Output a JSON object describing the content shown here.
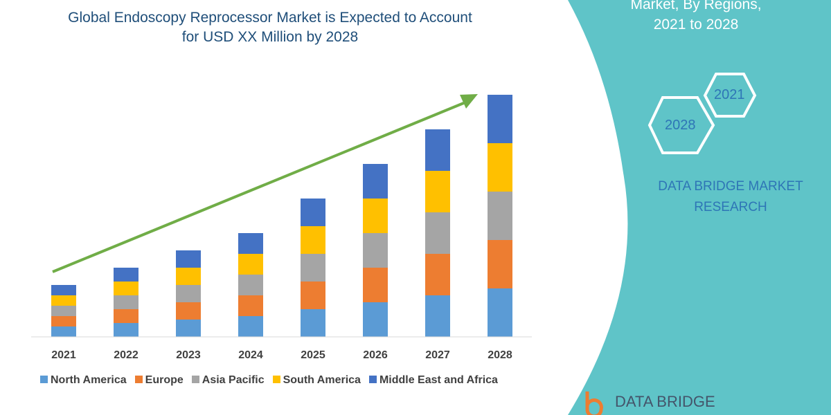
{
  "title_lines": [
    "Global Endoscopy Reprocessor Market is Expected to Account",
    "for USD XX Million by 2028"
  ],
  "side_panel": {
    "title_lines": [
      "Market, By Regions,",
      "2021 to 2028"
    ],
    "hex_labels": [
      "2021",
      "2028"
    ],
    "brand_lines": [
      "DATA BRIDGE MARKET",
      "RESEARCH"
    ],
    "logo_text": "DATA BRIDGE",
    "color": "#5fc4c8"
  },
  "chart_data": {
    "type": "bar",
    "stacked": true,
    "title": "",
    "xlabel": "",
    "ylabel": "",
    "legend": "bottom",
    "grid": false,
    "categories": [
      "2021",
      "2022",
      "2023",
      "2024",
      "2025",
      "2026",
      "2027",
      "2028"
    ],
    "series": [
      {
        "name": "North America",
        "color": "#5b9bd5",
        "values": [
          15,
          20,
          25,
          30,
          40,
          50,
          60,
          70
        ]
      },
      {
        "name": "Europe",
        "color": "#ed7d31",
        "values": [
          15,
          20,
          25,
          30,
          40,
          50,
          60,
          70
        ]
      },
      {
        "name": "Asia Pacific",
        "color": "#a5a5a5",
        "values": [
          15,
          20,
          25,
          30,
          40,
          50,
          60,
          70
        ]
      },
      {
        "name": "South America",
        "color": "#ffc000",
        "values": [
          15,
          20,
          25,
          30,
          40,
          50,
          60,
          70
        ]
      },
      {
        "name": "Middle East and Africa",
        "color": "#4472c4",
        "values": [
          15,
          20,
          25,
          30,
          40,
          50,
          60,
          70
        ]
      }
    ],
    "trend_arrow_color": "#70ad47"
  }
}
